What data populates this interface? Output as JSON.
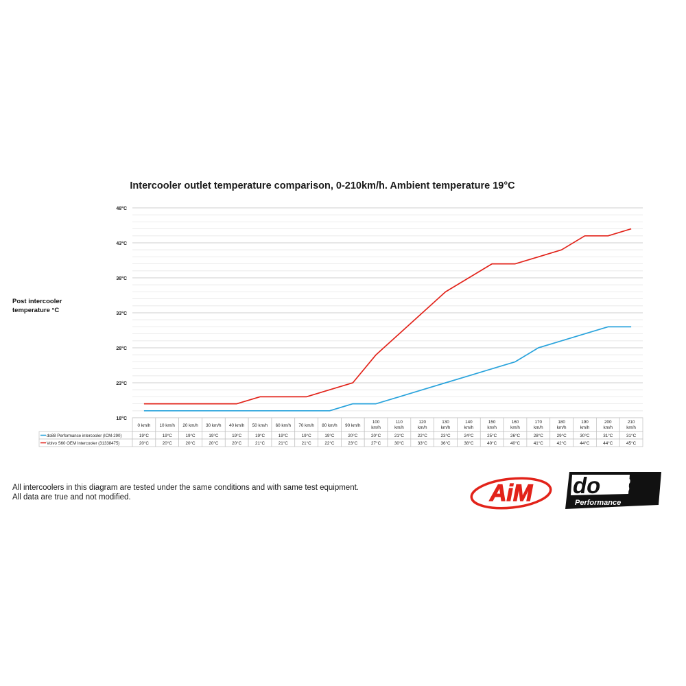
{
  "chart_data": {
    "type": "line",
    "title": "Intercooler outlet temperature comparison, 0-210km/h. Ambient temperature 19°C",
    "ylabel_lines": [
      "Post intercooler",
      "temperature °C"
    ],
    "xlabel": "",
    "ylim": [
      18,
      48
    ],
    "y_ticks": [
      18,
      23,
      28,
      33,
      38,
      43,
      48
    ],
    "y_tick_labels": [
      "18°C",
      "23°C",
      "28°C",
      "33°C",
      "38°C",
      "43°C",
      "48°C"
    ],
    "grid": true,
    "legend": "data-table-left",
    "categories": [
      [
        "0 km/h"
      ],
      [
        "10 km/h"
      ],
      [
        "20 km/h"
      ],
      [
        "30 km/h"
      ],
      [
        "40 km/h"
      ],
      [
        "50 km/h"
      ],
      [
        "60 km/h"
      ],
      [
        "70 km/h"
      ],
      [
        "80 km/h"
      ],
      [
        "90 km/h"
      ],
      [
        "100",
        "km/h"
      ],
      [
        "110",
        "km/h"
      ],
      [
        "120",
        "km/h"
      ],
      [
        "130",
        "km/h"
      ],
      [
        "140",
        "km/h"
      ],
      [
        "150",
        "km/h"
      ],
      [
        "160",
        "km/h"
      ],
      [
        "170",
        "km/h"
      ],
      [
        "180",
        "km/h"
      ],
      [
        "190",
        "km/h"
      ],
      [
        "200",
        "km/h"
      ],
      [
        "210",
        "km/h"
      ]
    ],
    "series": [
      {
        "name": "do88 Performance intercooler (ICM-290)",
        "color": "#29a3dc",
        "values": [
          19,
          19,
          19,
          19,
          19,
          19,
          19,
          19,
          19,
          20,
          20,
          21,
          22,
          23,
          24,
          25,
          26,
          28,
          29,
          30,
          31,
          31
        ],
        "labels": [
          "19°C",
          "19°C",
          "19°C",
          "19°C",
          "19°C",
          "19°C",
          "19°C",
          "19°C",
          "19°C",
          "20°C",
          "20°C",
          "21°C",
          "22°C",
          "23°C",
          "24°C",
          "25°C",
          "26°C",
          "28°C",
          "29°C",
          "30°C",
          "31°C",
          "31°C"
        ]
      },
      {
        "name": "Volvo S60 OEM Intercooler (31338475)",
        "color": "#e2231a",
        "values": [
          20,
          20,
          20,
          20,
          20,
          21,
          21,
          21,
          22,
          23,
          27,
          30,
          33,
          36,
          38,
          40,
          40,
          41,
          42,
          44,
          44,
          45
        ],
        "labels": [
          "20°C",
          "20°C",
          "20°C",
          "20°C",
          "20°C",
          "21°C",
          "21°C",
          "21°C",
          "22°C",
          "23°C",
          "27°C",
          "30°C",
          "33°C",
          "36°C",
          "38°C",
          "40°C",
          "40°C",
          "41°C",
          "42°C",
          "44°C",
          "44°C",
          "45°C"
        ]
      }
    ]
  },
  "footnote": {
    "line1": "All intercoolers in this diagram are tested under the same conditions and with same test equipment.",
    "line2": "All data are true and not modified."
  },
  "logos": {
    "aim": "AiM",
    "do88": "do88",
    "do88_sub": "Performance"
  },
  "colors": {
    "aim_red": "#e2231a",
    "do88_black": "#111111",
    "grid": "#d9d9d9",
    "table_border": "#bfbfbf"
  }
}
